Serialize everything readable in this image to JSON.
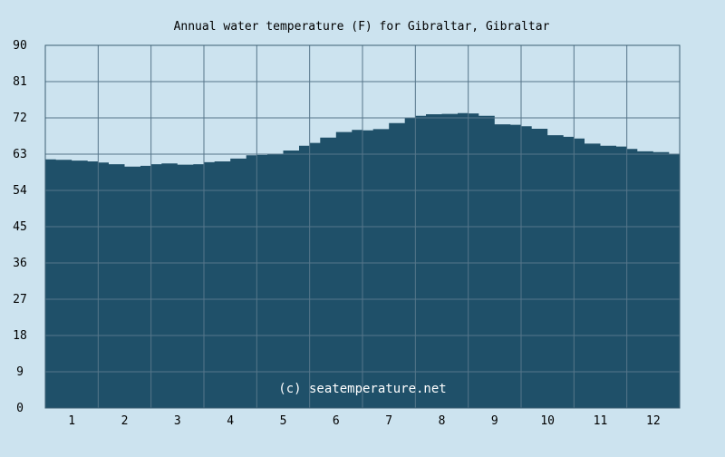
{
  "chart_data": {
    "type": "area",
    "title": "Annual water temperature (F) for Gibraltar, Gibraltar",
    "watermark": "(c) seatemperature.net",
    "xlabel": "",
    "ylabel": "",
    "categories": [
      "1",
      "2",
      "3",
      "4",
      "5",
      "6",
      "7",
      "8",
      "9",
      "10",
      "11",
      "12"
    ],
    "xlim": [
      0.5,
      12.5
    ],
    "ylim": [
      0,
      90
    ],
    "yticks": [
      "0",
      "9",
      "18",
      "27",
      "36",
      "45",
      "54",
      "63",
      "72",
      "81",
      "90"
    ],
    "grid": true,
    "series": [
      {
        "x": [
          0.5,
          0.7,
          1.0,
          1.3,
          1.5,
          1.7,
          2.0,
          2.3,
          2.5,
          2.7,
          3.0,
          3.3,
          3.5,
          3.7,
          4.0,
          4.3,
          4.5,
          4.7,
          5.0,
          5.3,
          5.5,
          5.7,
          6.0,
          6.3,
          6.5,
          6.7,
          7.0,
          7.3,
          7.5,
          7.7,
          8.0,
          8.3,
          8.5,
          8.7,
          9.0,
          9.3,
          9.5,
          9.7,
          10.0,
          10.3,
          10.5,
          10.7,
          11.0,
          11.3,
          11.5,
          11.7,
          12.0,
          12.3,
          12.5
        ],
        "values": [
          61.7,
          61.6,
          61.4,
          61.2,
          60.9,
          60.5,
          59.9,
          60.1,
          60.5,
          60.7,
          60.4,
          60.5,
          61.0,
          61.2,
          61.9,
          62.7,
          62.8,
          62.9,
          63.9,
          65.1,
          65.8,
          67.1,
          68.5,
          69.0,
          68.9,
          69.2,
          70.7,
          71.9,
          72.5,
          72.9,
          73.0,
          73.2,
          73.1,
          72.5,
          70.4,
          70.3,
          69.9,
          69.3,
          67.7,
          67.3,
          66.9,
          65.6,
          65.1,
          64.9,
          64.3,
          63.7,
          63.5,
          63.0,
          62.9
        ]
      }
    ],
    "colors": {
      "background": "#cce3ef",
      "area_fill": "#1f5069",
      "grid": "#56768a",
      "frame": "#3d5f73",
      "text": "#000000",
      "watermark_text": "#ffffff"
    }
  }
}
